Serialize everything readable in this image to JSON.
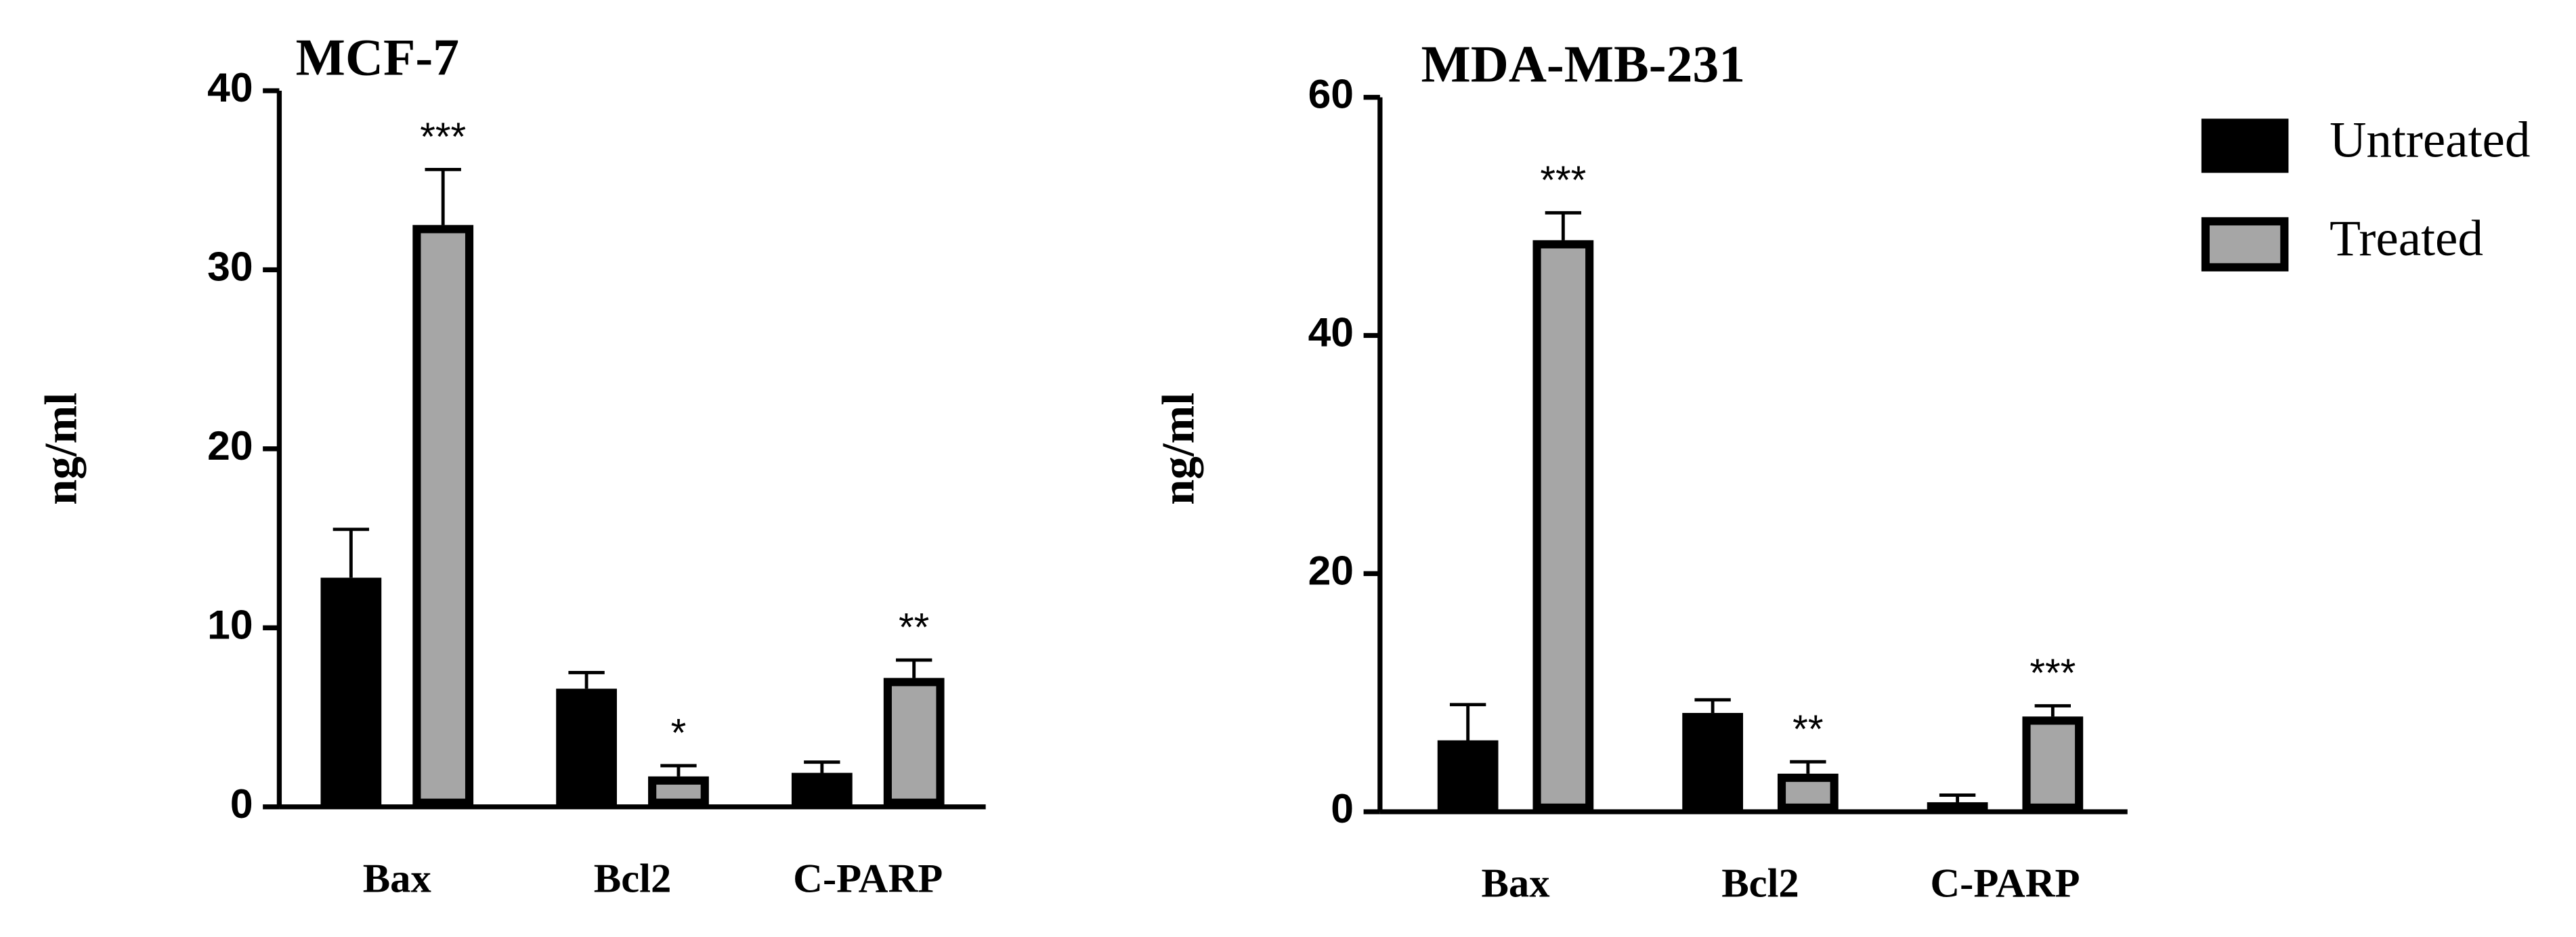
{
  "chart_data": [
    {
      "type": "bar",
      "title": "MCF-7",
      "ylabel": "ng/ml",
      "categories": [
        "Bax",
        "Bcl2",
        "C-PARP"
      ],
      "series": [
        {
          "color": "#000000",
          "values": [
            12.8,
            6.6,
            1.9
          ],
          "errors": [
            2.7,
            0.9,
            0.6
          ]
        },
        {
          "color": "#a6a6a6",
          "edgecolor": "#000000",
          "values": [
            32.5,
            1.7,
            7.2
          ],
          "errors": [
            3.1,
            0.6,
            1.0
          ]
        }
      ],
      "annotations": [
        "***",
        "*",
        "**"
      ],
      "ylim": [
        0,
        40
      ],
      "yticks": [
        0,
        10,
        20,
        30,
        40
      ]
    },
    {
      "type": "bar",
      "title": "MDA-MB-231",
      "ylabel": "ng/ml",
      "categories": [
        "Bax",
        "Bcl2",
        "C-PARP"
      ],
      "series": [
        {
          "name": "Untreated",
          "color": "#000000",
          "values": [
            6,
            8.3,
            0.8
          ],
          "errors": [
            3,
            1.1,
            0.6
          ]
        },
        {
          "name": "Treated",
          "color": "#a6a6a6",
          "edgecolor": "#000000",
          "values": [
            48,
            3.2,
            8
          ],
          "errors": [
            2.3,
            1.0,
            0.9
          ]
        }
      ],
      "annotations": [
        "***",
        "**",
        "***"
      ],
      "ylim": [
        0,
        60
      ],
      "yticks": [
        0,
        20,
        40,
        60
      ],
      "legend": "right"
    }
  ]
}
